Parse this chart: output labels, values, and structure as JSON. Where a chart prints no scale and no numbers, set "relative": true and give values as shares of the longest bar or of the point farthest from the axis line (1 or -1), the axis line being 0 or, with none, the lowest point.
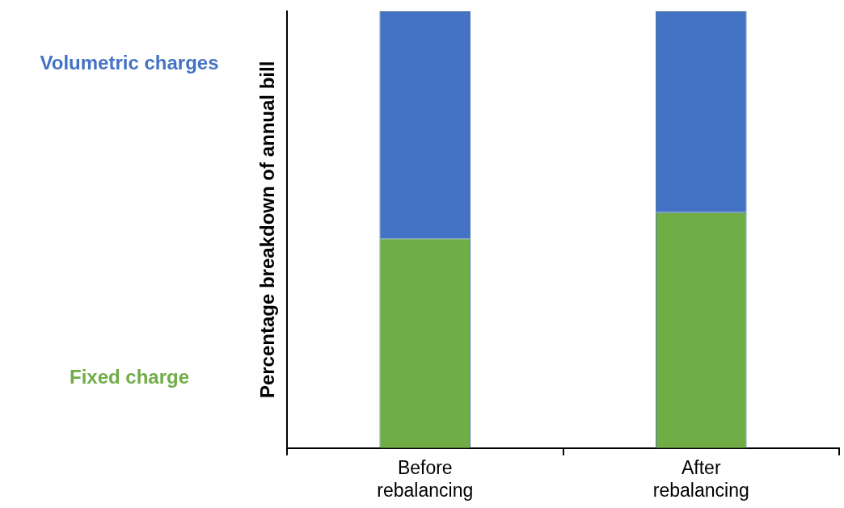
{
  "chart_data": {
    "type": "bar",
    "ylabel": "Percentage breakdown of annual bill",
    "categories": [
      "Before rebalancing",
      "After rebalancing"
    ],
    "stacked": true,
    "relative": true,
    "legend": false,
    "grid": false,
    "series": [
      {
        "name": "Fixed charge",
        "color": "#70ad47",
        "values": [
          0.48,
          0.54
        ]
      },
      {
        "name": "Volumetric charges",
        "color": "#4472c4",
        "values": [
          0.52,
          0.46
        ]
      }
    ]
  }
}
